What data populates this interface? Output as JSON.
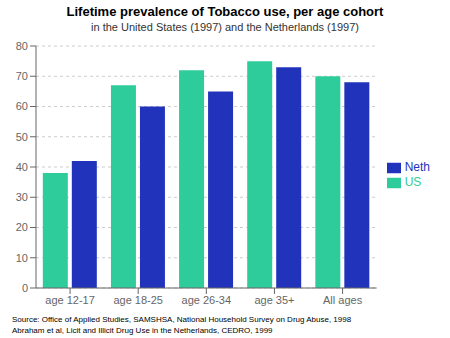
{
  "chart_data": {
    "type": "bar",
    "title": "Lifetime prevalence of Tobacco use, per age cohort",
    "subtitle": "in the United States (1997) and the Netherlands (1997)",
    "categories": [
      "age 12-17",
      "age 18-25",
      "age 26-34",
      "age 35+",
      "All ages"
    ],
    "series": [
      {
        "name": "US",
        "color": "#2ECC9A",
        "values": [
          38,
          67,
          72,
          75,
          70
        ]
      },
      {
        "name": "Neth",
        "color": "#2233BB",
        "values": [
          42,
          60,
          65,
          73,
          68
        ]
      }
    ],
    "ylim": [
      0,
      80
    ],
    "yticks": [
      0,
      10,
      20,
      30,
      40,
      50,
      60,
      70,
      80
    ],
    "grid": true,
    "legend": "right",
    "annotations": [
      "Source: Office of Applied Studies, SAMSHSA, National Household Survey on Drug Abuse, 1998",
      "Abraham et al, Licit and Illicit Drug Use in the Netherlands, CEDRO, 1999"
    ]
  }
}
